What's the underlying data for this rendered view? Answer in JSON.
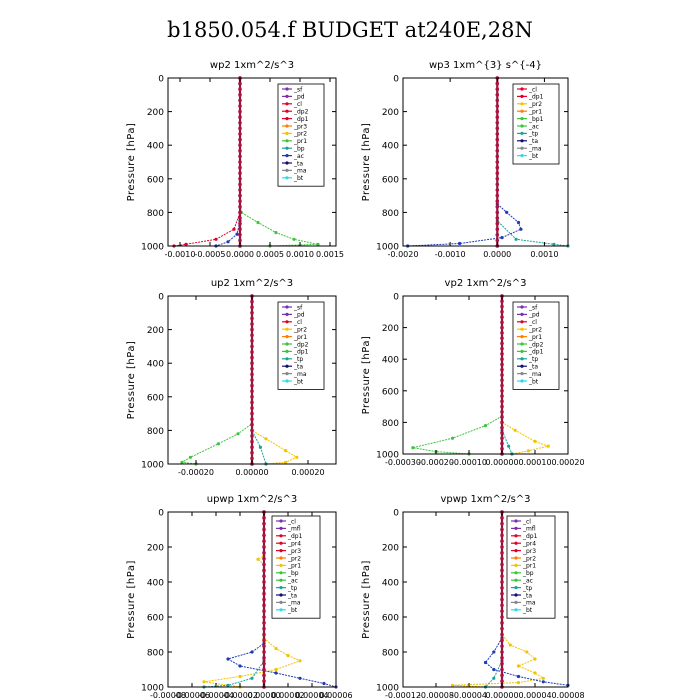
{
  "title": "b1850.054.f  BUDGET at240E,28N",
  "colors": {
    "purple": "#7b2fb0",
    "red": "#e0002a",
    "orange": "#ff7f00",
    "yellow": "#f2c400",
    "green": "#3cc43c",
    "teal": "#1aa39a",
    "blue": "#1f3ab8",
    "navy": "#101070",
    "cyan": "#2fd8ee",
    "gray": "#888888"
  },
  "chart_data": [
    {
      "type": "line",
      "title": "wp2   1xm^2/s^3",
      "ylabel": "Pressure [hPa]",
      "xlim": [
        -0.0012,
        0.0016
      ],
      "ylim": [
        1000,
        0
      ],
      "xticks": [
        -0.001,
        -0.0005,
        0.0,
        0.0005,
        0.001,
        0.0015
      ],
      "xticklabels": [
        "-0.0010",
        "-0.0005",
        "0.0000",
        "0.0005",
        "0.0010",
        "0.0015"
      ],
      "yticks": [
        0,
        200,
        400,
        600,
        800,
        1000
      ],
      "yticklabels": [
        "0",
        "200",
        "400",
        "600",
        "800",
        "1000"
      ],
      "legend": [
        "_sf",
        "_pd",
        "_cl",
        "_dp2",
        "_dp1",
        "_pr3",
        "_pr2",
        "_pr1",
        "_bp",
        "_ac",
        "_ta",
        "_ma",
        "_bt"
      ],
      "legend_colors": [
        "#7b2fb0",
        "#7b2fb0",
        "#e0002a",
        "#e0002a",
        "#e0002a",
        "#ff7f00",
        "#f2c400",
        "#3cc43c",
        "#1aa39a",
        "#1f3ab8",
        "#101070",
        "#888888",
        "#2fd8ee"
      ],
      "series": [
        {
          "color": "#3cc43c",
          "points": [
            [
              0,
              0
            ],
            [
              0,
              700
            ],
            [
              2e-05,
              800
            ],
            [
              0.0003,
              860
            ],
            [
              0.0006,
              920
            ],
            [
              0.0009,
              960
            ],
            [
              0.0013,
              990
            ],
            [
              0.0005,
              1000
            ]
          ]
        },
        {
          "color": "#e0002a",
          "points": [
            [
              0,
              0
            ],
            [
              0,
              800
            ],
            [
              -0.0001,
              900
            ],
            [
              -0.0004,
              960
            ],
            [
              -0.0009,
              990
            ],
            [
              -0.0011,
              1000
            ]
          ]
        },
        {
          "color": "#1f3ab8",
          "points": [
            [
              0,
              0
            ],
            [
              0,
              850
            ],
            [
              -5e-05,
              930
            ],
            [
              -0.0002,
              975
            ],
            [
              -0.0004,
              1000
            ]
          ]
        },
        {
          "color": "#7b2fb0",
          "points": [
            [
              0,
              0
            ],
            [
              0,
              1000
            ]
          ]
        }
      ]
    },
    {
      "type": "line",
      "title": "wp3   1xm^{3} s^{-4}",
      "ylabel": "Pressure [hPa]",
      "xlim": [
        -0.002,
        0.0015
      ],
      "ylim": [
        1000,
        0
      ],
      "xticks": [
        -0.002,
        -0.001,
        0.0,
        0.001
      ],
      "xticklabels": [
        "-0.0020",
        "-0.0010",
        "0.0000",
        "0.0010"
      ],
      "yticks": [
        0,
        200,
        400,
        600,
        800,
        1000
      ],
      "yticklabels": [
        "0",
        "200",
        "400",
        "600",
        "800",
        "1000"
      ],
      "legend": [
        "_cl",
        "_dp1",
        "_pr2",
        "_pr1",
        "_bp1",
        "_ac",
        "_tp",
        "_ta",
        "_ma",
        "_bt"
      ],
      "legend_colors": [
        "#e0002a",
        "#e0002a",
        "#f2c400",
        "#ff7f00",
        "#3cc43c",
        "#3cc43c",
        "#1aa39a",
        "#101070",
        "#888888",
        "#2fd8ee"
      ],
      "series": [
        {
          "color": "#1f3ab8",
          "points": [
            [
              0,
              0
            ],
            [
              0,
              750
            ],
            [
              0.0002,
              800
            ],
            [
              0.00045,
              860
            ],
            [
              0.0005,
              900
            ],
            [
              0.0001,
              950
            ],
            [
              -0.0008,
              985
            ],
            [
              -0.0019,
              1000
            ]
          ]
        },
        {
          "color": "#1aa39a",
          "points": [
            [
              0,
              0
            ],
            [
              0,
              850
            ],
            [
              0.0004,
              960
            ],
            [
              0.0012,
              990
            ],
            [
              0.0015,
              1000
            ]
          ]
        },
        {
          "color": "#e0002a",
          "points": [
            [
              0,
              0
            ],
            [
              0,
              1000
            ]
          ]
        }
      ]
    },
    {
      "type": "line",
      "title": "up2   1xm^2/s^3",
      "ylabel": "Pressure [hPa]",
      "xlim": [
        -0.0003,
        0.0003
      ],
      "ylim": [
        1000,
        0
      ],
      "xticks": [
        -0.0002,
        0.0,
        0.0002
      ],
      "xticklabels": [
        "-0.00020",
        "0.00000",
        "0.00020"
      ],
      "yticks": [
        0,
        200,
        400,
        600,
        800,
        1000
      ],
      "yticklabels": [
        "0",
        "200",
        "400",
        "600",
        "800",
        "1000"
      ],
      "legend": [
        "_sf",
        "_pd",
        "_cl",
        "_pr2",
        "_pr1",
        "_dp2",
        "_dp1",
        "_tp",
        "_ta",
        "_ma",
        "_bt"
      ],
      "legend_colors": [
        "#7b2fb0",
        "#7b2fb0",
        "#e0002a",
        "#f2c400",
        "#ff7f00",
        "#3cc43c",
        "#3cc43c",
        "#1aa39a",
        "#101070",
        "#888888",
        "#2fd8ee"
      ],
      "series": [
        {
          "color": "#3cc43c",
          "points": [
            [
              0,
              0
            ],
            [
              0,
              760
            ],
            [
              -5e-05,
              820
            ],
            [
              -0.00012,
              880
            ],
            [
              -0.00022,
              960
            ],
            [
              -0.00025,
              990
            ],
            [
              -0.0002,
              1000
            ]
          ]
        },
        {
          "color": "#f2c400",
          "points": [
            [
              0,
              0
            ],
            [
              0,
              800
            ],
            [
              5e-05,
              850
            ],
            [
              0.00012,
              920
            ],
            [
              0.00016,
              960
            ],
            [
              0.00012,
              990
            ],
            [
              5e-05,
              1000
            ]
          ]
        },
        {
          "color": "#1aa39a",
          "points": [
            [
              0,
              0
            ],
            [
              0,
              800
            ],
            [
              3e-05,
              900
            ],
            [
              5e-05,
              1000
            ]
          ]
        },
        {
          "color": "#e0002a",
          "points": [
            [
              0,
              0
            ],
            [
              0,
              1000
            ]
          ]
        }
      ]
    },
    {
      "type": "line",
      "title": "vp2   1xm^2/s^3",
      "ylabel": "Pressure [hPa]",
      "xlim": [
        -0.0003,
        0.0002
      ],
      "ylim": [
        1000,
        0
      ],
      "xticks": [
        -0.0003,
        -0.0002,
        -0.0001,
        0.0,
        0.0001,
        0.0002
      ],
      "xticklabels": [
        "-0.00030",
        "-0.00020",
        "-0.00010",
        "0.00000",
        "0.00010",
        "0.00020"
      ],
      "yticks": [
        0,
        200,
        400,
        600,
        800,
        1000
      ],
      "yticklabels": [
        "0",
        "200",
        "400",
        "600",
        "800",
        "1000"
      ],
      "legend": [
        "_sf",
        "_pd",
        "_cl",
        "_pr2",
        "_pr1",
        "_dp2",
        "_dp1",
        "_tp",
        "_ta",
        "_ma",
        "_bt"
      ],
      "legend_colors": [
        "#7b2fb0",
        "#7b2fb0",
        "#e0002a",
        "#f2c400",
        "#ff7f00",
        "#3cc43c",
        "#3cc43c",
        "#1aa39a",
        "#101070",
        "#888888",
        "#2fd8ee"
      ],
      "series": [
        {
          "color": "#3cc43c",
          "points": [
            [
              0,
              0
            ],
            [
              0,
              760
            ],
            [
              -5e-05,
              820
            ],
            [
              -0.00015,
              900
            ],
            [
              -0.00027,
              960
            ],
            [
              -0.0002,
              985
            ],
            [
              -0.0001,
              1000
            ]
          ]
        },
        {
          "color": "#f2c400",
          "points": [
            [
              0,
              0
            ],
            [
              0,
              800
            ],
            [
              4e-05,
              850
            ],
            [
              0.0001,
              920
            ],
            [
              0.00014,
              950
            ],
            [
              8e-05,
              980
            ],
            [
              3e-05,
              1000
            ]
          ]
        },
        {
          "color": "#1aa39a",
          "points": [
            [
              0,
              0
            ],
            [
              0,
              850
            ],
            [
              2e-05,
              950
            ],
            [
              3e-05,
              1000
            ]
          ]
        },
        {
          "color": "#e0002a",
          "points": [
            [
              0,
              0
            ],
            [
              0,
              1000
            ]
          ]
        }
      ]
    },
    {
      "type": "line",
      "title": "upwp   1xm^2/s^3",
      "ylabel": "Pressure [hPa]",
      "xlim": [
        -8e-05,
        6e-05
      ],
      "ylim": [
        1000,
        0
      ],
      "xticks": [
        -8e-05,
        -6e-05,
        -4e-05,
        -2e-05,
        0.0,
        2e-05,
        4e-05,
        6e-05
      ],
      "xticklabels": [
        "-0.00008",
        "-0.00006",
        "-0.00004",
        "-0.00002",
        "0.00000",
        "0.00002",
        "0.00004",
        "0.00006"
      ],
      "yticks": [
        0,
        200,
        400,
        600,
        800,
        1000
      ],
      "yticklabels": [
        "0",
        "200",
        "400",
        "600",
        "800",
        "1000"
      ],
      "legend": [
        "_cl",
        "_mfl",
        "_dp1",
        "_pr4",
        "_pr3",
        "_pr2",
        "_pr1",
        "_bp",
        "_ac",
        "_tp",
        "_ta",
        "_ma",
        "_bt"
      ],
      "legend_colors": [
        "#7b2fb0",
        "#7b2fb0",
        "#e0002a",
        "#e0002a",
        "#e0002a",
        "#ff7f00",
        "#f2c400",
        "#3cc43c",
        "#3cc43c",
        "#1aa39a",
        "#101070",
        "#888888",
        "#2fd8ee"
      ],
      "series": [
        {
          "color": "#f2c400",
          "points": [
            [
              0,
              0
            ],
            [
              0,
              250
            ],
            [
              -5e-06,
              270
            ],
            [
              0,
              300
            ],
            [
              0,
              720
            ],
            [
              1e-05,
              780
            ],
            [
              2e-05,
              820
            ],
            [
              3e-05,
              850
            ],
            [
              1e-05,
              900
            ],
            [
              -2e-05,
              940
            ],
            [
              -5e-05,
              970
            ],
            [
              -2e-05,
              1000
            ]
          ]
        },
        {
          "color": "#1f3ab8",
          "points": [
            [
              0,
              0
            ],
            [
              0,
              750
            ],
            [
              -1e-05,
              800
            ],
            [
              -3e-05,
              840
            ],
            [
              -2e-05,
              880
            ],
            [
              1e-05,
              920
            ],
            [
              3e-05,
              950
            ],
            [
              5e-05,
              980
            ],
            [
              6e-05,
              1000
            ]
          ]
        },
        {
          "color": "#1aa39a",
          "points": [
            [
              0,
              0
            ],
            [
              0,
              850
            ],
            [
              -1e-05,
              950
            ],
            [
              -3e-05,
              990
            ],
            [
              -5e-05,
              1000
            ]
          ]
        },
        {
          "color": "#e0002a",
          "points": [
            [
              0,
              0
            ],
            [
              0,
              1000
            ]
          ]
        }
      ]
    },
    {
      "type": "line",
      "title": "vpwp   1xm^2/s^3",
      "ylabel": "Pressure [hPa]",
      "xlim": [
        -0.00012,
        8e-05
      ],
      "ylim": [
        1000,
        0
      ],
      "xticks": [
        -0.00012,
        -8e-05,
        -4e-05,
        0.0,
        4e-05,
        8e-05
      ],
      "xticklabels": [
        "-0.00012",
        "-0.00008",
        "-0.00004",
        "0.00000",
        "0.00004",
        "0.00008"
      ],
      "yticks": [
        0,
        200,
        400,
        600,
        800,
        1000
      ],
      "yticklabels": [
        "0",
        "200",
        "400",
        "600",
        "800",
        "1000"
      ],
      "legend": [
        "_cl",
        "_mfl",
        "_dp1",
        "_pr4",
        "_pr3",
        "_pr2",
        "_pr1",
        "_bp",
        "_ac",
        "_tp",
        "_ta",
        "_ma",
        "_bt"
      ],
      "legend_colors": [
        "#7b2fb0",
        "#7b2fb0",
        "#e0002a",
        "#e0002a",
        "#e0002a",
        "#ff7f00",
        "#f2c400",
        "#3cc43c",
        "#3cc43c",
        "#1aa39a",
        "#101070",
        "#888888",
        "#2fd8ee"
      ],
      "series": [
        {
          "color": "#f2c400",
          "points": [
            [
              0,
              0
            ],
            [
              0,
              700
            ],
            [
              1e-05,
              760
            ],
            [
              3e-05,
              800
            ],
            [
              4e-05,
              840
            ],
            [
              2e-05,
              880
            ],
            [
              4e-05,
              920
            ],
            [
              5e-05,
              950
            ],
            [
              2e-05,
              975
            ],
            [
              -6e-05,
              990
            ],
            [
              -2e-05,
              1000
            ]
          ]
        },
        {
          "color": "#1f3ab8",
          "points": [
            [
              0,
              0
            ],
            [
              0,
              720
            ],
            [
              -1e-05,
              800
            ],
            [
              -2e-05,
              860
            ],
            [
              -1e-05,
              900
            ],
            [
              2e-05,
              940
            ],
            [
              5e-05,
              970
            ],
            [
              8e-05,
              990
            ]
          ]
        },
        {
          "color": "#1aa39a",
          "points": [
            [
              0,
              0
            ],
            [
              0,
              850
            ],
            [
              -1e-05,
              950
            ],
            [
              -2e-05,
              1000
            ]
          ]
        },
        {
          "color": "#e0002a",
          "points": [
            [
              0,
              0
            ],
            [
              0,
              1000
            ]
          ]
        }
      ]
    }
  ]
}
